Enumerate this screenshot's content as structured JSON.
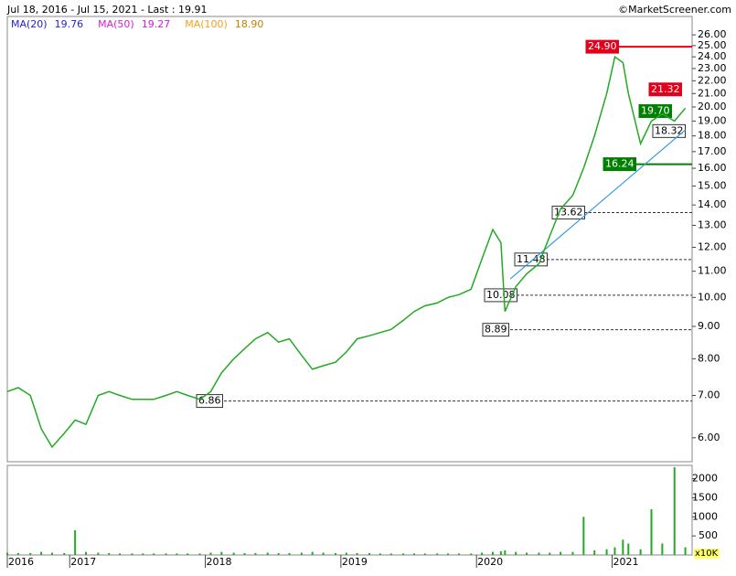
{
  "chart_data": {
    "type": "line",
    "title": "Jul 18, 2016 - Jul 15, 2021 - Last : 19.91",
    "credit": "©MarketScreener.com",
    "log_scale": true,
    "moving_averages": [
      {
        "name": "MA(20)",
        "value": 19.76,
        "color": "#1f1fd0"
      },
      {
        "name": "MA(50)",
        "value": 19.27,
        "color": "#d020d0"
      },
      {
        "name": "MA(100)",
        "value": 18.9,
        "value_label": "18.90",
        "color": "#f0a020"
      }
    ],
    "x": [
      2016.54,
      2016.62,
      2016.71,
      2016.79,
      2016.87,
      2016.96,
      2017.04,
      2017.12,
      2017.21,
      2017.29,
      2017.37,
      2017.46,
      2017.54,
      2017.62,
      2017.71,
      2017.79,
      2017.87,
      2017.96,
      2018.04,
      2018.12,
      2018.21,
      2018.29,
      2018.37,
      2018.46,
      2018.54,
      2018.62,
      2018.71,
      2018.79,
      2018.87,
      2018.96,
      2019.04,
      2019.12,
      2019.21,
      2019.29,
      2019.37,
      2019.46,
      2019.54,
      2019.62,
      2019.71,
      2019.79,
      2019.87,
      2019.96,
      2020.04,
      2020.12,
      2020.18,
      2020.21,
      2020.29,
      2020.37,
      2020.46,
      2020.54,
      2020.62,
      2020.71,
      2020.79,
      2020.87,
      2020.96,
      2021.02,
      2021.08,
      2021.12,
      2021.21,
      2021.29,
      2021.37,
      2021.46,
      2021.54
    ],
    "price": {
      "color": "#22aa22",
      "values": [
        7.1,
        7.2,
        7.0,
        6.2,
        5.8,
        6.1,
        6.4,
        6.3,
        7.0,
        7.1,
        7.0,
        6.9,
        6.9,
        6.9,
        7.0,
        7.1,
        7.0,
        6.9,
        7.1,
        7.6,
        8.0,
        8.3,
        8.6,
        8.8,
        8.5,
        8.6,
        8.1,
        7.7,
        7.8,
        7.9,
        8.2,
        8.6,
        8.7,
        8.8,
        8.9,
        9.2,
        9.5,
        9.7,
        9.8,
        10.0,
        10.1,
        10.3,
        11.5,
        12.8,
        12.2,
        9.5,
        10.4,
        10.9,
        11.3,
        12.5,
        13.8,
        14.5,
        16.0,
        18.0,
        21.0,
        24.0,
        23.5,
        21.0,
        17.5,
        19.0,
        19.5,
        19.0,
        19.91
      ]
    },
    "trendline": {
      "x": [
        2020.25,
        2021.54
      ],
      "values": [
        10.7,
        18.4
      ],
      "color": "#3399dd"
    },
    "xlim": [
      2016.54,
      2021.59
    ],
    "xticks": [
      {
        "value": 2016.54,
        "label": "2016"
      },
      2017,
      2018,
      2019,
      2020,
      2021
    ],
    "ylim": [
      5.5,
      27.8
    ],
    "yticks": [
      {
        "value": 6,
        "label": "6.00"
      },
      {
        "value": 7,
        "label": "7.00"
      },
      {
        "value": 8,
        "label": "8.00"
      },
      {
        "value": 9,
        "label": "9.00"
      },
      {
        "value": 10,
        "label": "10.00"
      },
      {
        "value": 11,
        "label": "11.00"
      },
      {
        "value": 12,
        "label": "12.00"
      },
      {
        "value": 13,
        "label": "13.00"
      },
      {
        "value": 14,
        "label": "14.00"
      },
      {
        "value": 15,
        "label": "15.00"
      },
      {
        "value": 16,
        "label": "16.00"
      },
      {
        "value": 17,
        "label": "17.00"
      },
      {
        "value": 18,
        "label": "18.00"
      },
      {
        "value": 19,
        "label": "19.00"
      },
      {
        "value": 20,
        "label": "20.00"
      },
      {
        "value": 21,
        "label": "21.00"
      },
      {
        "value": 22,
        "label": "22.00"
      },
      {
        "value": 23,
        "label": "23.00"
      },
      {
        "value": 24,
        "label": "24.00"
      },
      {
        "value": 25,
        "label": "25.00"
      },
      {
        "value": 26,
        "label": "26.00"
      }
    ],
    "levels": [
      {
        "value": 24.9,
        "label": "24.90",
        "color": "#e3001b",
        "line": "solid"
      },
      {
        "value": 21.32,
        "label": "21.32",
        "color": "#e3001b",
        "line": "none"
      },
      {
        "value": 19.7,
        "label": "19.70",
        "color": "#008000",
        "line": "none"
      },
      {
        "value": 18.32,
        "label": "18.32",
        "color": "#ffffff",
        "line": "none"
      },
      {
        "value": 16.24,
        "label": "16.24",
        "color": "#008000",
        "line": "solid"
      },
      {
        "value": 13.62,
        "label": "13.62",
        "color": "#ffffff",
        "line": "dashed"
      },
      {
        "value": 11.48,
        "label": "11.48",
        "color": "#ffffff",
        "line": "dashed"
      },
      {
        "value": 10.08,
        "label": "10.08",
        "color": "#ffffff",
        "line": "dashed"
      },
      {
        "value": 8.89,
        "label": "8.89",
        "color": "#ffffff",
        "line": "dashed"
      },
      {
        "value": 6.86,
        "label": "6.86",
        "color": "#ffffff",
        "line": "dashed"
      }
    ],
    "volume": {
      "color": "#22aa22",
      "values": [
        60,
        50,
        50,
        80,
        60,
        50,
        650,
        80,
        60,
        50,
        40,
        40,
        40,
        40,
        40,
        40,
        40,
        40,
        60,
        80,
        60,
        50,
        50,
        60,
        50,
        50,
        60,
        80,
        60,
        50,
        60,
        50,
        50,
        40,
        40,
        40,
        40,
        40,
        40,
        40,
        40,
        40,
        60,
        80,
        100,
        120,
        80,
        60,
        60,
        60,
        80,
        80,
        1000,
        120,
        150,
        200,
        400,
        300,
        150,
        1200,
        300,
        2300,
        200
      ],
      "ylim": [
        0,
        2350
      ],
      "yticks": [
        500,
        1000,
        1500,
        2000
      ],
      "unit_label": "x10K"
    }
  }
}
